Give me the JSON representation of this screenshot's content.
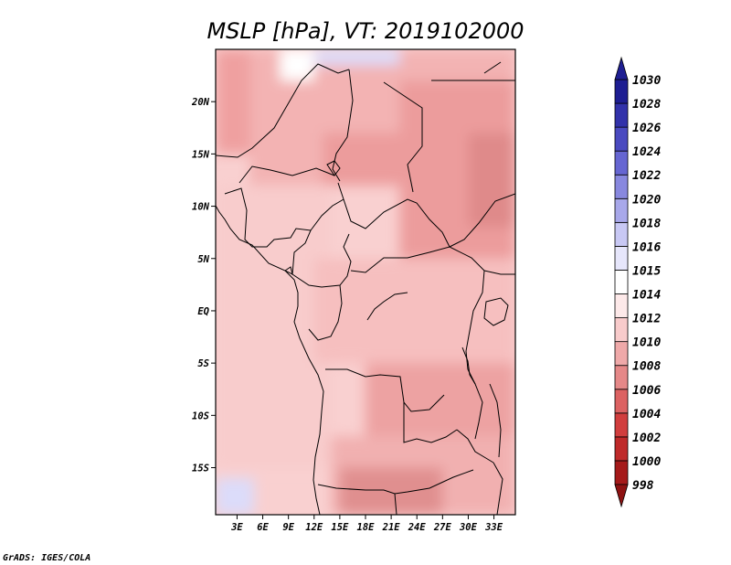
{
  "chart_data": {
    "type": "heatmap",
    "title": "MSLP [hPa], VT: 2019102000",
    "xlabel": "",
    "ylabel": "",
    "x_ticks": [
      "3E",
      "6E",
      "9E",
      "12E",
      "15E",
      "18E",
      "21E",
      "24E",
      "27E",
      "30E",
      "33E"
    ],
    "x_tick_values": [
      3,
      6,
      9,
      12,
      15,
      18,
      21,
      24,
      27,
      30,
      33
    ],
    "y_ticks": [
      "20N",
      "15N",
      "10N",
      "5N",
      "EQ",
      "5S",
      "10S",
      "15S"
    ],
    "y_tick_values": [
      20,
      15,
      10,
      5,
      0,
      -5,
      -10,
      -15
    ],
    "xlim": [
      0.5,
      35.5
    ],
    "ylim": [
      -19.5,
      25
    ],
    "colorbar": {
      "levels": [
        "998",
        "1000",
        "1002",
        "1004",
        "1006",
        "1008",
        "1010",
        "1012",
        "1014",
        "1015",
        "1016",
        "1018",
        "1020",
        "1022",
        "1024",
        "1026",
        "1028",
        "1030"
      ],
      "colors": [
        "#8e1212",
        "#a51a1a",
        "#bf2a2a",
        "#d13e3e",
        "#dc6262",
        "#e58888",
        "#efa9a9",
        "#f8cbcb",
        "#fde9e9",
        "#ffffff",
        "#e6e6fb",
        "#c8c8f4",
        "#a8a8ea",
        "#8888df",
        "#6666d2",
        "#4a4ac0",
        "#3232aa",
        "#1e1e92"
      ],
      "extend": "both",
      "orientation": "vertical"
    },
    "field_regions": [
      {
        "lon": [
          0.5,
          4.5
        ],
        "lat": [
          15,
          25
        ],
        "value": 1009,
        "color": "#efa0a0"
      },
      {
        "lon": [
          4.5,
          35.5
        ],
        "lat": [
          12,
          25
        ],
        "value": 1010,
        "color": "#f3b3b3"
      },
      {
        "lon": [
          13,
          22
        ],
        "lat": [
          12,
          17
        ],
        "value": 1009,
        "color": "#ec9c9c"
      },
      {
        "lon": [
          22,
          35.5
        ],
        "lat": [
          2,
          22
        ],
        "value": 1009,
        "color": "#ec9c9c"
      },
      {
        "lon": [
          30,
          35.5
        ],
        "lat": [
          8,
          17
        ],
        "value": 1008,
        "color": "#df8a8a"
      },
      {
        "lon": [
          0.5,
          14
        ],
        "lat": [
          -15,
          12
        ],
        "value": 1012,
        "color": "#f8cccc"
      },
      {
        "lon": [
          12,
          35.5
        ],
        "lat": [
          -5,
          5
        ],
        "value": 1011,
        "color": "#f6bfbf"
      },
      {
        "lon": [
          18,
          35.5
        ],
        "lat": [
          -12,
          -5
        ],
        "value": 1009,
        "color": "#eda2a2"
      },
      {
        "lon": [
          14,
          35.5
        ],
        "lat": [
          -19.5,
          -12
        ],
        "value": 1010,
        "color": "#f1b0b0"
      },
      {
        "lon": [
          15,
          27
        ],
        "lat": [
          -19.5,
          -15
        ],
        "value": 1008,
        "color": "#e08f8f"
      },
      {
        "lon": [
          8,
          12
        ],
        "lat": [
          22,
          25
        ],
        "value": 1015,
        "color": "#ffffff"
      },
      {
        "lon": [
          12,
          22
        ],
        "lat": [
          23.5,
          25
        ],
        "value": 1016,
        "color": "#dcdcfa"
      },
      {
        "lon": [
          0.5,
          5
        ],
        "lat": [
          -19.5,
          -16
        ],
        "value": 1016,
        "color": "#dcdcfa"
      }
    ]
  },
  "footer": {
    "credit": "GrADS: IGES/COLA"
  }
}
